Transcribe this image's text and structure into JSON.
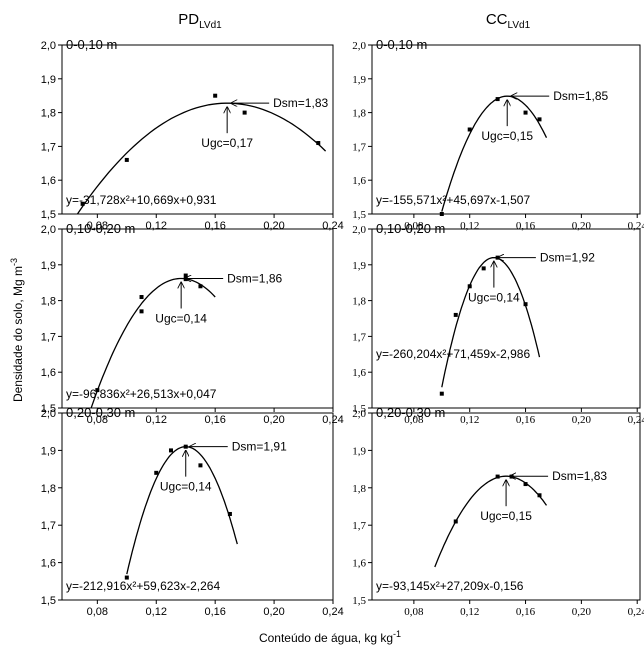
{
  "column_titles": [
    {
      "text": "PD",
      "subscript": "LVd1"
    },
    {
      "text": "CC",
      "subscript": "LVd1"
    }
  ],
  "y_label": {
    "text": "Densidade do solo, Mg m",
    "superscript": "-3"
  },
  "x_label": {
    "text": "Conteúdo de água, kg kg",
    "superscript": "-1"
  },
  "chart_data": [
    {
      "type": "scatter",
      "title": "0-0,10 m",
      "x": [
        0.07,
        0.1,
        0.16,
        0.18,
        0.23
      ],
      "values": [
        1.53,
        1.66,
        1.85,
        1.8,
        1.71
      ],
      "color": "#000000",
      "fit": {
        "coefficients": [
          -31.728,
          10.669,
          0.931
        ],
        "x_range": [
          0.065,
          0.235
        ]
      },
      "equation": "y=-31,728x²+10,669x+0,931",
      "annotations": [
        "Dsm=1,83",
        "Ugc=0,17"
      ],
      "xlim": [
        0.056,
        0.24
      ],
      "ylim": [
        1.5,
        2.0
      ],
      "xticks": [
        {
          "value": 0.08,
          "label": "0,08"
        },
        {
          "value": 0.12,
          "label": "0,12"
        },
        {
          "value": 0.16,
          "label": "0,16"
        },
        {
          "value": 0.2,
          "label": "0,20"
        },
        {
          "value": 0.24,
          "label": "0,24"
        }
      ],
      "yticks": [
        {
          "value": 1.5,
          "label": "1,5"
        },
        {
          "value": 1.6,
          "label": "1,6"
        },
        {
          "value": 1.7,
          "label": "1,7"
        },
        {
          "value": 1.8,
          "label": "1,8"
        },
        {
          "value": 1.9,
          "label": "1,9"
        },
        {
          "value": 2.0,
          "label": "2,0"
        }
      ]
    },
    {
      "type": "scatter",
      "title": "0-0,10 m",
      "x": [
        0.1,
        0.12,
        0.14,
        0.16,
        0.17
      ],
      "values": [
        1.5,
        1.75,
        1.84,
        1.8,
        1.78
      ],
      "color": "#000000",
      "fit": {
        "coefficients": [
          -155.571,
          45.697,
          -1.507
        ],
        "x_range": [
          0.1,
          0.175
        ]
      },
      "equation": "y=-155,571x²+45,697x-1,507",
      "annotations": [
        "Dsm=1,85",
        "Ugc=0,15"
      ],
      "xlim": [
        0.05,
        0.242
      ],
      "ylim": [
        1.5,
        2.0
      ],
      "xticks": [
        {
          "value": 0.08,
          "label": "0,08"
        },
        {
          "value": 0.12,
          "label": "0,12"
        },
        {
          "value": 0.16,
          "label": "0,16"
        },
        {
          "value": 0.2,
          "label": "0,20"
        },
        {
          "value": 0.24,
          "label": "0,24"
        }
      ],
      "yticks": [
        {
          "value": 1.5,
          "label": "1,5"
        },
        {
          "value": 1.6,
          "label": "1,6"
        },
        {
          "value": 1.7,
          "label": "1,7"
        },
        {
          "value": 1.8,
          "label": "1,8"
        },
        {
          "value": 1.9,
          "label": "1,9"
        },
        {
          "value": 2.0,
          "label": "2,0"
        }
      ]
    },
    {
      "type": "scatter",
      "title": "0,10-0,20 m",
      "x": [
        0.08,
        0.11,
        0.11,
        0.14,
        0.14,
        0.15
      ],
      "values": [
        1.55,
        1.81,
        1.77,
        1.87,
        1.86,
        1.84
      ],
      "color": "#000000",
      "fit": {
        "coefficients": [
          -96.836,
          26.513,
          0.047
        ],
        "x_range": [
          0.075,
          0.16
        ]
      },
      "equation": "y=-96,836x²+26,513x+0,047",
      "annotations": [
        "Dsm=1,86",
        "Ugc=0,14"
      ],
      "xlim": [
        0.056,
        0.24
      ],
      "ylim": [
        1.5,
        2.0
      ],
      "xticks": [
        {
          "value": 0.08,
          "label": "0,08"
        },
        {
          "value": 0.12,
          "label": "0,12"
        },
        {
          "value": 0.16,
          "label": "0,16"
        },
        {
          "value": 0.2,
          "label": "0,20"
        },
        {
          "value": 0.24,
          "label": "0,24"
        }
      ],
      "yticks": [
        {
          "value": 1.5,
          "label": "1,5"
        },
        {
          "value": 1.6,
          "label": "1,6"
        },
        {
          "value": 1.7,
          "label": "1,7"
        },
        {
          "value": 1.8,
          "label": "1,8"
        },
        {
          "value": 1.9,
          "label": "1,9"
        },
        {
          "value": 2.0,
          "label": "2,0"
        }
      ]
    },
    {
      "type": "scatter",
      "title": "0,10-0,20 m",
      "x": [
        0.1,
        0.11,
        0.12,
        0.13,
        0.14,
        0.16
      ],
      "values": [
        1.54,
        1.76,
        1.84,
        1.89,
        1.92,
        1.79
      ],
      "color": "#000000",
      "fit": {
        "coefficients": [
          -260.204,
          71.459,
          -2.986
        ],
        "x_range": [
          0.1,
          0.17
        ]
      },
      "equation": "y=-260,204x²+71,459x-2,986",
      "annotations": [
        "Dsm=1,92",
        "Ugc=0,14"
      ],
      "xlim": [
        0.05,
        0.242
      ],
      "ylim": [
        1.5,
        2.0
      ],
      "xticks": [
        {
          "value": 0.08,
          "label": "0,08"
        },
        {
          "value": 0.12,
          "label": "0,12"
        },
        {
          "value": 0.16,
          "label": "0,16"
        },
        {
          "value": 0.2,
          "label": "0,20"
        },
        {
          "value": 0.24,
          "label": "0,24"
        }
      ],
      "yticks": [
        {
          "value": 1.5,
          "label": "1,5"
        },
        {
          "value": 1.6,
          "label": "1,6"
        },
        {
          "value": 1.7,
          "label": "1,7"
        },
        {
          "value": 1.8,
          "label": "1,8"
        },
        {
          "value": 1.9,
          "label": "1,9"
        },
        {
          "value": 2.0,
          "label": "2,0"
        }
      ]
    },
    {
      "type": "scatter",
      "title": "0,20-0,30 m",
      "x": [
        0.1,
        0.12,
        0.13,
        0.14,
        0.15,
        0.17
      ],
      "values": [
        1.56,
        1.84,
        1.9,
        1.91,
        1.86,
        1.73
      ],
      "color": "#000000",
      "fit": {
        "coefficients": [
          -212.916,
          59.623,
          -2.264
        ],
        "x_range": [
          0.1,
          0.175
        ]
      },
      "equation": "y=-212,916x²+59,623x-2,264",
      "annotations": [
        "Dsm=1,91",
        "Ugc=0,14"
      ],
      "xlim": [
        0.056,
        0.24
      ],
      "ylim": [
        1.5,
        2.0
      ],
      "xticks": [
        {
          "value": 0.08,
          "label": "0,08"
        },
        {
          "value": 0.12,
          "label": "0,12"
        },
        {
          "value": 0.16,
          "label": "0,16"
        },
        {
          "value": 0.2,
          "label": "0,20"
        },
        {
          "value": 0.24,
          "label": "0,24"
        }
      ],
      "yticks": [
        {
          "value": 1.5,
          "label": "1,5"
        },
        {
          "value": 1.6,
          "label": "1,6"
        },
        {
          "value": 1.7,
          "label": "1,7"
        },
        {
          "value": 1.8,
          "label": "1,8"
        },
        {
          "value": 1.9,
          "label": "1,9"
        },
        {
          "value": 2.0,
          "label": "2,0"
        }
      ]
    },
    {
      "type": "scatter",
      "title": "0,20-0,30 m",
      "x": [
        0.11,
        0.14,
        0.15,
        0.16,
        0.17
      ],
      "values": [
        1.71,
        1.83,
        1.83,
        1.81,
        1.78
      ],
      "color": "#000000",
      "fit": {
        "coefficients": [
          -93.145,
          27.209,
          -0.156
        ],
        "x_range": [
          0.095,
          0.175
        ]
      },
      "equation": "y=-93,145x²+27,209x-0,156",
      "annotations": [
        "Dsm=1,83",
        "Ugc=0,15"
      ],
      "xlim": [
        0.05,
        0.242
      ],
      "ylim": [
        1.5,
        2.0
      ],
      "xticks": [
        {
          "value": 0.08,
          "label": "0,08"
        },
        {
          "value": 0.12,
          "label": "0,12"
        },
        {
          "value": 0.16,
          "label": "0,16"
        },
        {
          "value": 0.2,
          "label": "0,20"
        },
        {
          "value": 0.24,
          "label": "0,24"
        }
      ],
      "yticks": [
        {
          "value": 1.5,
          "label": "1,5"
        },
        {
          "value": 1.6,
          "label": "1,6"
        },
        {
          "value": 1.7,
          "label": "1,7"
        },
        {
          "value": 1.8,
          "label": "1,8"
        },
        {
          "value": 1.9,
          "label": "1,9"
        },
        {
          "value": 2.0,
          "label": "2,0"
        }
      ]
    }
  ]
}
